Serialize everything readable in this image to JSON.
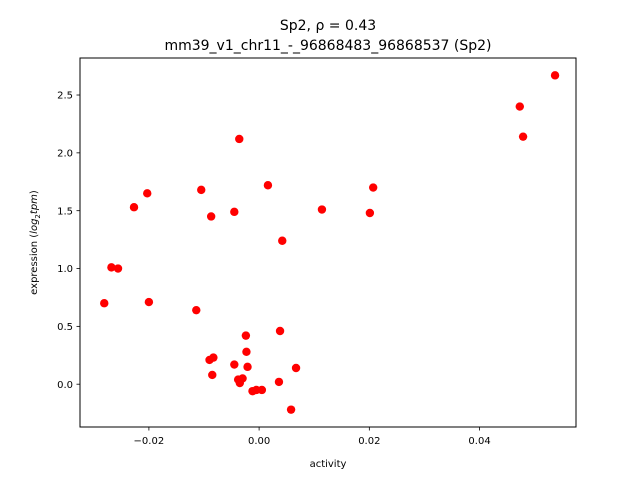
{
  "chart_data": {
    "type": "scatter",
    "title_line1": "Sp2, ρ = 0.43",
    "title_line2": "mm39_v1_chr11_-_96868483_96868537 (Sp2)",
    "xlabel": "activity",
    "ylabel_prefix": "expression (",
    "ylabel_math": "log",
    "ylabel_sub": "2",
    "ylabel_math2": "tpm",
    "ylabel_suffix": ")",
    "xlim": [
      -0.0325,
      0.0575
    ],
    "ylim": [
      -0.37,
      2.82
    ],
    "x_ticks": [
      {
        "value": -0.02,
        "label": "−0.02"
      },
      {
        "value": 0.0,
        "label": "0.00"
      },
      {
        "value": 0.02,
        "label": "0.02"
      },
      {
        "value": 0.04,
        "label": "0.04"
      }
    ],
    "y_ticks": [
      {
        "value": 0.0,
        "label": "0.0"
      },
      {
        "value": 0.5,
        "label": "0.5"
      },
      {
        "value": 1.0,
        "label": "1.0"
      },
      {
        "value": 1.5,
        "label": "1.5"
      },
      {
        "value": 2.0,
        "label": "2.0"
      },
      {
        "value": 2.5,
        "label": "2.5"
      }
    ],
    "point_color": "#ff0000",
    "grid": false,
    "points": [
      {
        "x": 0.0537,
        "y": 2.67
      },
      {
        "x": 0.0473,
        "y": 2.4
      },
      {
        "x": 0.0479,
        "y": 2.14
      },
      {
        "x": -0.0036,
        "y": 2.12
      },
      {
        "x": 0.0016,
        "y": 1.72
      },
      {
        "x": -0.0105,
        "y": 1.68
      },
      {
        "x": 0.0207,
        "y": 1.7
      },
      {
        "x": -0.0203,
        "y": 1.65
      },
      {
        "x": -0.0227,
        "y": 1.53
      },
      {
        "x": -0.0087,
        "y": 1.45
      },
      {
        "x": -0.0045,
        "y": 1.49
      },
      {
        "x": 0.0114,
        "y": 1.51
      },
      {
        "x": 0.0201,
        "y": 1.48
      },
      {
        "x": 0.0042,
        "y": 1.24
      },
      {
        "x": -0.0268,
        "y": 1.01
      },
      {
        "x": -0.0256,
        "y": 1.0
      },
      {
        "x": -0.0281,
        "y": 0.7
      },
      {
        "x": -0.02,
        "y": 0.71
      },
      {
        "x": -0.0114,
        "y": 0.64
      },
      {
        "x": -0.0024,
        "y": 0.42
      },
      {
        "x": 0.0038,
        "y": 0.46
      },
      {
        "x": -0.0023,
        "y": 0.28
      },
      {
        "x": -0.009,
        "y": 0.21
      },
      {
        "x": -0.0083,
        "y": 0.23
      },
      {
        "x": -0.0045,
        "y": 0.17
      },
      {
        "x": -0.0021,
        "y": 0.15
      },
      {
        "x": 0.0067,
        "y": 0.14
      },
      {
        "x": -0.0085,
        "y": 0.08
      },
      {
        "x": -0.0038,
        "y": 0.04
      },
      {
        "x": -0.003,
        "y": 0.05
      },
      {
        "x": -0.0035,
        "y": 0.01
      },
      {
        "x": 0.0036,
        "y": 0.02
      },
      {
        "x": -0.0012,
        "y": -0.06
      },
      {
        "x": -0.0005,
        "y": -0.05
      },
      {
        "x": 0.0005,
        "y": -0.05
      },
      {
        "x": 0.0058,
        "y": -0.22
      }
    ]
  }
}
